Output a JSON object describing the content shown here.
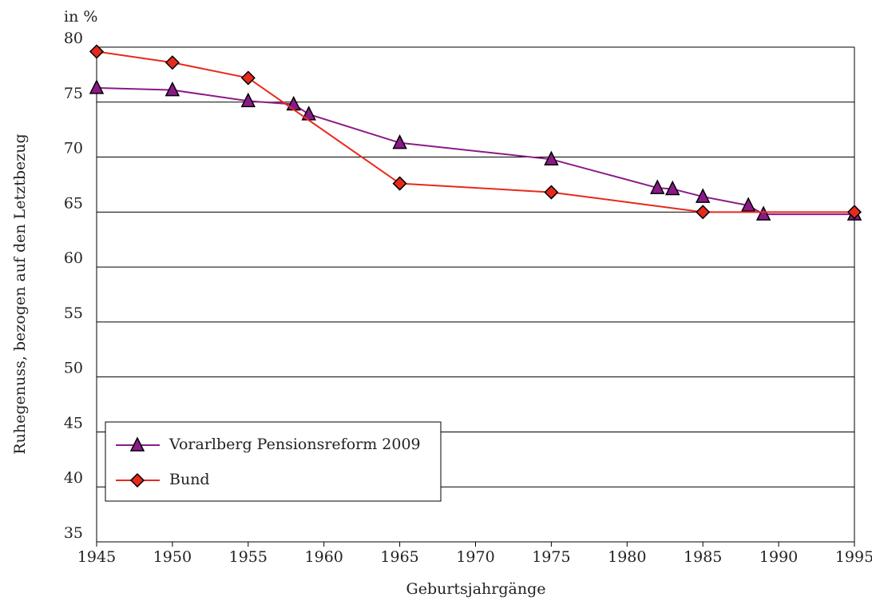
{
  "chart_data": {
    "type": "line",
    "y_label": "Ruhegenuss, bezogen auf den Letztbezug",
    "y_unit": "in %",
    "x_label": "Geburtsjahrgänge",
    "xlim": [
      1945,
      1995
    ],
    "xticks": [
      1945,
      1950,
      1955,
      1960,
      1965,
      1970,
      1975,
      1980,
      1985,
      1990,
      1995
    ],
    "ylim": [
      35,
      80
    ],
    "yticks": [
      35,
      40,
      45,
      50,
      55,
      60,
      65,
      70,
      75,
      80
    ],
    "grid": true,
    "legend": "lower left",
    "series": [
      {
        "name": "Vorarlberg Pensionsreform 2009",
        "color": "#8b1a89",
        "marker": "triangle",
        "x": [
          1945,
          1950,
          1955,
          1958,
          1959,
          1965,
          1975,
          1982,
          1983,
          1985,
          1988,
          1989,
          1995
        ],
        "values": [
          76.3,
          76.1,
          75.1,
          74.8,
          73.9,
          71.3,
          69.8,
          67.2,
          67.1,
          66.4,
          65.6,
          64.8,
          64.8
        ]
      },
      {
        "name": "Bund",
        "color": "#e8291c",
        "marker": "diamond",
        "x": [
          1945,
          1950,
          1955,
          1965,
          1975,
          1985,
          1995
        ],
        "values": [
          79.6,
          78.6,
          77.2,
          67.6,
          66.8,
          65.0,
          65.0
        ]
      }
    ]
  }
}
